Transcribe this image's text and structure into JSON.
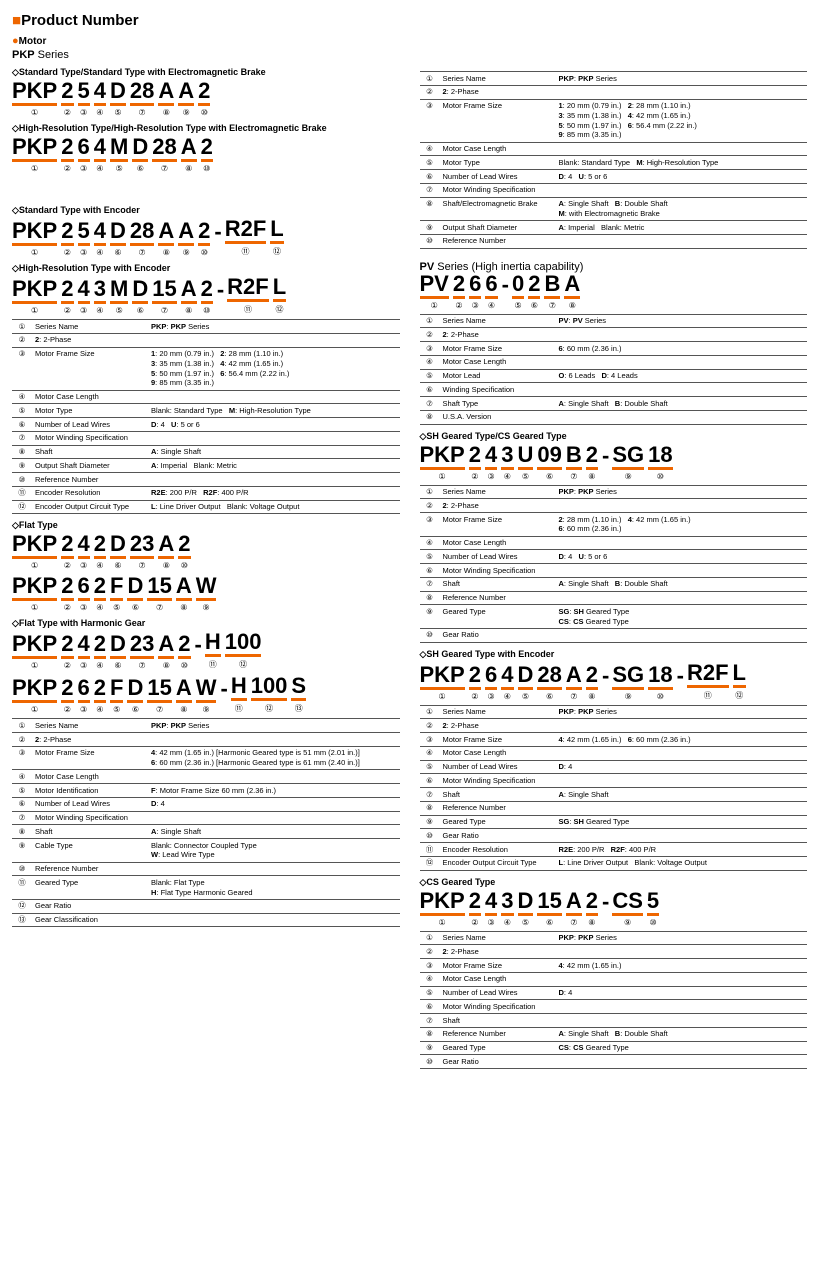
{
  "hdr": "Product Number",
  "motor": "Motor",
  "pkp": "PKP",
  "pv": "PV",
  "series_txt": " Series",
  "t_std": "Standard Type/Standard Type with Electromagnetic Brake",
  "t_hr": "High-Resolution Type/High-Resolution Type with Electromagnetic Brake",
  "t_std_enc": "Standard Type with Encoder",
  "t_hr_enc": "High-Resolution Type with Encoder",
  "t_flat": "Flat Type",
  "t_flat_hg": "Flat Type with Harmonic Gear",
  "t_pv": " Series (High inertia capability)",
  "t_sh_cs": "SH Geared Type/CS Geared Type",
  "t_sh_enc": "SH Geared Type with Encoder",
  "t_cs": "CS Geared Type",
  "p1": [
    "PKP",
    "2",
    "5",
    "4",
    "D",
    "28",
    "A",
    "A",
    "2"
  ],
  "n1": [
    "①",
    "②",
    "③",
    "④",
    "⑤",
    "⑦",
    "⑧",
    "⑨",
    "⑩"
  ],
  "p2": [
    "PKP",
    "2",
    "6",
    "4",
    "M",
    "D",
    "28",
    "A",
    "2"
  ],
  "n2": [
    "①",
    "②",
    "③",
    "④",
    "⑤",
    "⑥",
    "⑦",
    "⑧",
    "⑩"
  ],
  "p3": [
    "PKP",
    "2",
    "5",
    "4",
    "D",
    "28",
    "A",
    "A",
    "2",
    "-",
    "R2F",
    "L"
  ],
  "n3": [
    "①",
    "②",
    "③",
    "④",
    "⑥",
    "⑦",
    "⑧",
    "⑨",
    "⑩",
    "",
    "⑪",
    "⑫"
  ],
  "p4": [
    "PKP",
    "2",
    "4",
    "3",
    "M",
    "D",
    "15",
    "A",
    "2",
    "-",
    "R2F",
    "L"
  ],
  "n4": [
    "①",
    "②",
    "③",
    "④",
    "⑤",
    "⑥",
    "⑦",
    "⑧",
    "⑩",
    "",
    "⑪",
    "⑫"
  ],
  "p5": [
    "PKP",
    "2",
    "4",
    "2",
    "D",
    "23",
    "A",
    "2"
  ],
  "n5": [
    "①",
    "②",
    "③",
    "④",
    "⑥",
    "⑦",
    "⑧",
    "⑩"
  ],
  "p6": [
    "PKP",
    "2",
    "6",
    "2",
    "F",
    "D",
    "15",
    "A",
    "W"
  ],
  "n6": [
    "①",
    "②",
    "③",
    "④",
    "⑤",
    "⑥",
    "⑦",
    "⑧",
    "⑨"
  ],
  "p7": [
    "PKP",
    "2",
    "4",
    "2",
    "D",
    "23",
    "A",
    "2",
    "-",
    "H",
    "100"
  ],
  "n7": [
    "①",
    "②",
    "③",
    "④",
    "⑥",
    "⑦",
    "⑧",
    "⑩",
    "",
    "⑪",
    "⑫"
  ],
  "p8": [
    "PKP",
    "2",
    "6",
    "2",
    "F",
    "D",
    "15",
    "A",
    "W",
    "-",
    "H",
    "100",
    "S"
  ],
  "n8": [
    "①",
    "②",
    "③",
    "④",
    "⑤",
    "⑥",
    "⑦",
    "⑧",
    "⑨",
    "",
    "⑪",
    "⑫",
    "⑬"
  ],
  "p9": [
    "PV",
    "2",
    "6",
    "6",
    "-",
    "0",
    "2",
    "B",
    "A"
  ],
  "n9": [
    "①",
    "②",
    "③",
    "④",
    "",
    "⑤",
    "⑥",
    "⑦",
    "⑧"
  ],
  "p10": [
    "PKP",
    "2",
    "4",
    "3",
    "U",
    "09",
    "B",
    "2",
    "-",
    "SG",
    "18"
  ],
  "n10": [
    "①",
    "②",
    "③",
    "④",
    "⑤",
    "⑥",
    "⑦",
    "⑧",
    "",
    "⑨",
    "⑩"
  ],
  "p11": [
    "PKP",
    "2",
    "6",
    "4",
    "D",
    "28",
    "A",
    "2",
    "-",
    "SG",
    "18",
    "-",
    "R2F",
    "L"
  ],
  "n11": [
    "①",
    "②",
    "③",
    "④",
    "⑤",
    "⑥",
    "⑦",
    "⑧",
    "",
    "⑨",
    "⑩",
    "",
    "⑪",
    "⑫"
  ],
  "p12": [
    "PKP",
    "2",
    "4",
    "3",
    "D",
    "15",
    "A",
    "2",
    "-",
    "CS",
    "5"
  ],
  "n12": [
    "①",
    "②",
    "③",
    "④",
    "⑤",
    "⑥",
    "⑦",
    "⑧",
    "",
    "⑨",
    "⑩"
  ],
  "tblA": [
    [
      "①",
      "Series Name",
      "<b>PKP</b>: <b>PKP</b> Series"
    ],
    [
      "②",
      "<b>2</b>: 2-Phase",
      ""
    ],
    [
      "③",
      "Motor Frame Size",
      "<b>1</b>: 20 mm (0.79 in.)&nbsp;&nbsp;&nbsp;<b>2</b>: 28 mm (1.10 in.)<br><b>3</b>: 35 mm (1.38 in.)&nbsp;&nbsp;&nbsp;<b>4</b>: 42 mm (1.65 in.)<br><b>5</b>: 50 mm (1.97 in.)&nbsp;&nbsp;&nbsp;<b>6</b>: 56.4 mm (2.22 in.)<br><b>9</b>: 85 mm (3.35 in.)"
    ],
    [
      "④",
      "Motor Case Length",
      ""
    ],
    [
      "⑤",
      "Motor Type",
      "Blank: Standard Type&nbsp;&nbsp;&nbsp;<b>M</b>: High-Resolution Type"
    ],
    [
      "⑥",
      "Number of Lead Wires",
      "<b>D</b>: 4&nbsp;&nbsp;&nbsp;<b>U</b>: 5 or 6"
    ],
    [
      "⑦",
      "Motor Winding Specification",
      ""
    ],
    [
      "⑧",
      "Shaft/Electromagnetic Brake",
      "<b>A</b>: Single Shaft&nbsp;&nbsp;&nbsp;<b>B</b>: Double Shaft<br><b>M</b>: with Electromagnetic Brake"
    ],
    [
      "⑨",
      "Output Shaft Diameter",
      "<b>A</b>: Imperial&nbsp;&nbsp;&nbsp;Blank: Metric"
    ],
    [
      "⑩",
      "Reference Number",
      ""
    ]
  ],
  "tblB": [
    [
      "①",
      "Series Name",
      "<b>PKP</b>: <b>PKP</b> Series"
    ],
    [
      "②",
      "<b>2</b>: 2-Phase",
      ""
    ],
    [
      "③",
      "Motor Frame Size",
      "<b>1</b>: 20 mm (0.79 in.)&nbsp;&nbsp;&nbsp;<b>2</b>: 28 mm (1.10 in.)<br><b>3</b>: 35 mm (1.38 in.)&nbsp;&nbsp;&nbsp;<b>4</b>: 42 mm (1.65 in.)<br><b>5</b>: 50 mm (1.97 in.)&nbsp;&nbsp;&nbsp;<b>6</b>: 56.4 mm (2.22 in.)<br><b>9</b>: 85 mm (3.35 in.)"
    ],
    [
      "④",
      "Motor Case Length",
      ""
    ],
    [
      "⑤",
      "Motor Type",
      "Blank: Standard Type&nbsp;&nbsp;&nbsp;<b>M</b>: High-Resolution Type"
    ],
    [
      "⑥",
      "Number of Lead Wires",
      "<b>D</b>: 4&nbsp;&nbsp;&nbsp;<b>U</b>: 5 or 6"
    ],
    [
      "⑦",
      "Motor Winding Specification",
      ""
    ],
    [
      "⑧",
      "Shaft",
      "<b>A</b>: Single Shaft"
    ],
    [
      "⑨",
      "Output Shaft Diameter",
      "<b>A</b>: Imperial&nbsp;&nbsp;&nbsp;Blank: Metric"
    ],
    [
      "⑩",
      "Reference Number",
      ""
    ],
    [
      "⑪",
      "Encoder Resolution",
      "<b>R2E</b>: 200 P/R&nbsp;&nbsp;&nbsp;<b>R2F</b>: 400 P/R"
    ],
    [
      "⑫",
      "Encoder Output Circuit Type",
      "<b>L</b>: Line Driver Output&nbsp;&nbsp;&nbsp;Blank: Voltage Output"
    ]
  ],
  "tblC": [
    [
      "①",
      "Series Name",
      "<b>PKP</b>: <b>PKP</b> Series"
    ],
    [
      "②",
      "<b>2</b>: 2-Phase",
      ""
    ],
    [
      "③",
      "Motor Frame Size",
      "<b>4</b>: 42 mm (1.65 in.) [Harmonic Geared type is 51 mm (2.01 in.)]<br><b>6</b>: 60 mm (2.36 in.) [Harmonic Geared type is 61 mm (2.40 in.)]"
    ],
    [
      "④",
      "Motor Case Length",
      ""
    ],
    [
      "⑤",
      "Motor Identification",
      "<b>F</b>: Motor Frame Size 60 mm (2.36 in.)"
    ],
    [
      "⑥",
      "Number of Lead Wires",
      "<b>D</b>: 4"
    ],
    [
      "⑦",
      "Motor Winding Specification",
      ""
    ],
    [
      "⑧",
      "Shaft",
      "<b>A</b>: Single Shaft"
    ],
    [
      "⑨",
      "Cable Type",
      "Blank: Connector Coupled Type<br><b>W</b>: Lead Wire Type"
    ],
    [
      "⑩",
      "Reference Number",
      ""
    ],
    [
      "⑪",
      "Geared Type",
      "Blank: Flat Type<br><b>H</b>: Flat Type Harmonic Geared"
    ],
    [
      "⑫",
      "Gear Ratio",
      ""
    ],
    [
      "⑬",
      "Gear Classification",
      ""
    ]
  ],
  "tblD": [
    [
      "①",
      "Series Name",
      "<b>PV</b>: <b>PV</b> Series"
    ],
    [
      "②",
      "<b>2</b>: 2-Phase",
      ""
    ],
    [
      "③",
      "Motor Frame Size",
      "<b>6</b>: 60 mm (2.36 in.)"
    ],
    [
      "④",
      "Motor Case Length",
      ""
    ],
    [
      "⑤",
      "Motor Lead",
      "<b>O</b>: 6 Leads&nbsp;&nbsp;&nbsp;<b>D</b>: 4 Leads"
    ],
    [
      "⑥",
      "Winding Specification",
      ""
    ],
    [
      "⑦",
      "Shaft Type",
      "<b>A</b>: Single Shaft&nbsp;&nbsp;&nbsp;<b>B</b>: Double Shaft"
    ],
    [
      "⑧",
      "U.S.A. Version",
      ""
    ]
  ],
  "tblE": [
    [
      "①",
      "Series Name",
      "<b>PKP</b>: <b>PKP</b> Series"
    ],
    [
      "②",
      "<b>2</b>: 2-Phase",
      ""
    ],
    [
      "③",
      "Motor Frame Size",
      "<b>2</b>: 28 mm (1.10 in.)&nbsp;&nbsp;&nbsp;<b>4</b>: 42 mm (1.65 in.)<br><b>6</b>: 60 mm (2.36 in.)"
    ],
    [
      "④",
      "Motor Case Length",
      ""
    ],
    [
      "⑤",
      "Number of Lead Wires",
      "<b>D</b>: 4&nbsp;&nbsp;&nbsp;<b>U</b>: 5 or 6"
    ],
    [
      "⑥",
      "Motor Winding Specification",
      ""
    ],
    [
      "⑦",
      "Shaft",
      "<b>A</b>: Single Shaft&nbsp;&nbsp;&nbsp;<b>B</b>: Double Shaft"
    ],
    [
      "⑧",
      "Reference Number",
      ""
    ],
    [
      "⑨",
      "Geared Type",
      "<b>SG</b>: <b>SH</b> Geared Type<br><b>CS</b>: <b>CS</b> Geared Type"
    ],
    [
      "⑩",
      "Gear Ratio",
      ""
    ]
  ],
  "tblF": [
    [
      "①",
      "Series Name",
      "<b>PKP</b>: <b>PKP</b> Series"
    ],
    [
      "②",
      "<b>2</b>: 2-Phase",
      ""
    ],
    [
      "③",
      "Motor Frame Size",
      "<b>4</b>: 42 mm (1.65 in.)&nbsp;&nbsp;&nbsp;<b>6</b>: 60 mm (2.36 in.)"
    ],
    [
      "④",
      "Motor Case Length",
      ""
    ],
    [
      "⑤",
      "Number of Lead Wires",
      "<b>D</b>: 4"
    ],
    [
      "⑥",
      "Motor Winding Specification",
      ""
    ],
    [
      "⑦",
      "Shaft",
      "<b>A</b>: Single Shaft"
    ],
    [
      "⑧",
      "Reference Number",
      ""
    ],
    [
      "⑨",
      "Geared Type",
      "<b>SG</b>: <b>SH</b> Geared Type"
    ],
    [
      "⑩",
      "Gear Ratio",
      ""
    ],
    [
      "⑪",
      "Encoder Resolution",
      "<b>R2E</b>: 200 P/R&nbsp;&nbsp;&nbsp;<b>R2F</b>: 400 P/R"
    ],
    [
      "⑫",
      "Encoder Output Circuit Type",
      "<b>L</b>: Line Driver Output&nbsp;&nbsp;&nbsp;Blank: Voltage Output"
    ]
  ],
  "tblG": [
    [
      "①",
      "Series Name",
      "<b>PKP</b>: <b>PKP</b> Series"
    ],
    [
      "②",
      "<b>2</b>: 2-Phase",
      ""
    ],
    [
      "③",
      "Motor Frame Size",
      "<b>4</b>: 42 mm (1.65 in.)"
    ],
    [
      "④",
      "Motor Case Length",
      ""
    ],
    [
      "⑤",
      "Number of Lead Wires",
      "<b>D</b>: 4"
    ],
    [
      "⑥",
      "Motor Winding Specification",
      ""
    ],
    [
      "⑦",
      "Shaft",
      ""
    ],
    [
      "⑧",
      "Reference Number",
      "<b>A</b>: Single Shaft&nbsp;&nbsp;&nbsp;<b>B</b>: Double Shaft"
    ],
    [
      "⑨",
      "Geared Type",
      "<b>CS</b>: <b>CS</b> Geared Type"
    ],
    [
      "⑩",
      "Gear Ratio",
      ""
    ]
  ]
}
